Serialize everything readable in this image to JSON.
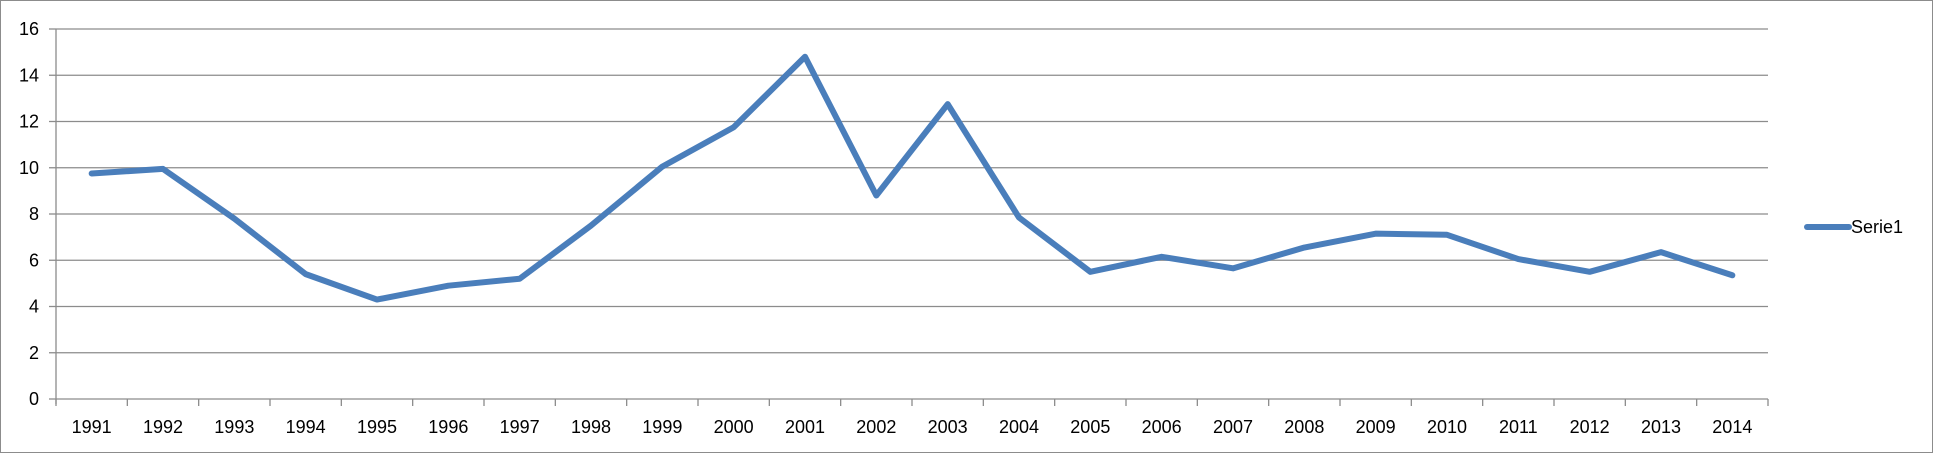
{
  "chart_data": {
    "type": "line",
    "title": "",
    "xlabel": "",
    "ylabel": "",
    "categories": [
      "1991",
      "1992",
      "1993",
      "1994",
      "1995",
      "1996",
      "1997",
      "1998",
      "1999",
      "2000",
      "2001",
      "2002",
      "2003",
      "2004",
      "2005",
      "2006",
      "2007",
      "2008",
      "2009",
      "2010",
      "2011",
      "2012",
      "2013",
      "2014"
    ],
    "series": [
      {
        "name": "Serie1",
        "color": "#4a7ebb",
        "values": [
          9.75,
          9.95,
          7.8,
          5.4,
          4.3,
          4.9,
          5.2,
          7.5,
          10.05,
          11.75,
          14.8,
          8.8,
          12.75,
          7.85,
          5.5,
          6.15,
          5.65,
          6.55,
          7.15,
          7.1,
          6.05,
          5.5,
          6.35,
          5.35
        ]
      }
    ],
    "ylim": [
      0,
      16
    ],
    "yticks": [
      0,
      2,
      4,
      6,
      8,
      10,
      12,
      14,
      16
    ],
    "grid": true,
    "legend": "right"
  }
}
